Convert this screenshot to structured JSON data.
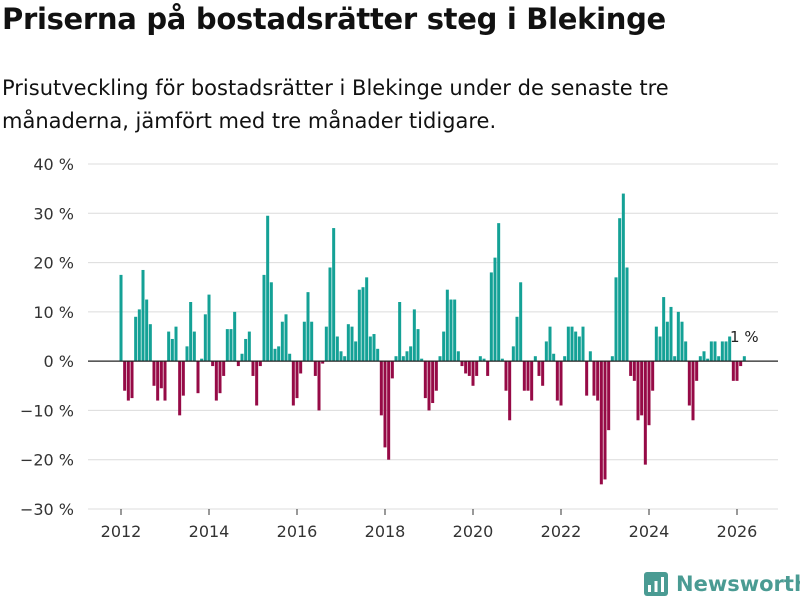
{
  "header": {
    "title": "Priserna på bostadsrätter steg i Blekinge",
    "subtitle": "Prisutveckling för bostadsrätter i Blekinge under de senaste tre månaderna, jämfört med tre månader tidigare."
  },
  "brand": {
    "name": "Newsworthy"
  },
  "colors": {
    "positive": "#14a196",
    "negative": "#960a46",
    "grid": "#dcdcdc",
    "axis": "#333333",
    "brand": "#4a9b93"
  },
  "chart_data": {
    "type": "bar",
    "title": "Priserna på bostadsrätter steg i Blekinge",
    "xlabel": "",
    "ylabel": "",
    "ylim": [
      -30,
      40
    ],
    "yticks": [
      -30,
      -20,
      -10,
      0,
      10,
      20,
      30,
      40
    ],
    "ytick_labels": [
      "−30 %",
      "−20 %",
      "−10 %",
      "0 %",
      "10 %",
      "20 %",
      "30 %",
      "40 %"
    ],
    "xticks": [
      2012,
      2014,
      2016,
      2018,
      2020,
      2022,
      2024,
      2026
    ],
    "xtick_labels": [
      "2012",
      "2014",
      "2016",
      "2018",
      "2020",
      "2022",
      "2024",
      "2026"
    ],
    "start": {
      "year": 2012,
      "month": 1
    },
    "grid": true,
    "annotation": {
      "text": "1 %",
      "index": 170
    },
    "values": [
      17.5,
      -6,
      -8,
      -7.5,
      9,
      10.5,
      18.5,
      12.5,
      7.5,
      -5,
      -8,
      -5.5,
      -8,
      6,
      4.5,
      7,
      -11,
      -7,
      3,
      12,
      6,
      -6.5,
      0.5,
      9.5,
      13.5,
      -1,
      -8,
      -6.5,
      -3,
      6.5,
      6.5,
      10,
      -1,
      1.5,
      4.5,
      6,
      -3,
      -9,
      -1,
      17.5,
      29.5,
      16,
      2.5,
      3,
      8,
      9.5,
      1.5,
      -9,
      -7.5,
      -2.5,
      8,
      14,
      8,
      -3,
      -10,
      -0.5,
      7,
      19,
      27,
      5,
      2,
      1,
      7.5,
      7,
      4,
      14.5,
      15,
      17,
      5,
      5.5,
      2.5,
      -11,
      -17.5,
      -20,
      -3.5,
      1,
      12,
      1,
      2,
      3,
      10.5,
      6.5,
      0.5,
      -7.5,
      -10,
      -8.5,
      -6,
      1,
      6,
      14.5,
      12.5,
      12.5,
      2,
      -1,
      -2.5,
      -3,
      -5,
      -3,
      1,
      0.5,
      -3,
      18,
      21,
      28,
      0.5,
      -6,
      -12,
      3,
      9,
      16,
      -6,
      -6,
      -8,
      1,
      -3,
      -5,
      4,
      7,
      1.5,
      -8,
      -9,
      1,
      7,
      7,
      6,
      5,
      7,
      -7,
      2,
      -7,
      -8,
      -25,
      -24,
      -14,
      1,
      17,
      29,
      34,
      19,
      -3,
      -4,
      -12,
      -11,
      -21,
      -13,
      -6,
      7,
      5,
      13,
      8,
      11,
      1,
      10,
      8,
      4,
      -9,
      -12,
      -4,
      1,
      2,
      0.5,
      4,
      4,
      1,
      4,
      4,
      5,
      -4,
      -4,
      -1,
      1
    ]
  }
}
